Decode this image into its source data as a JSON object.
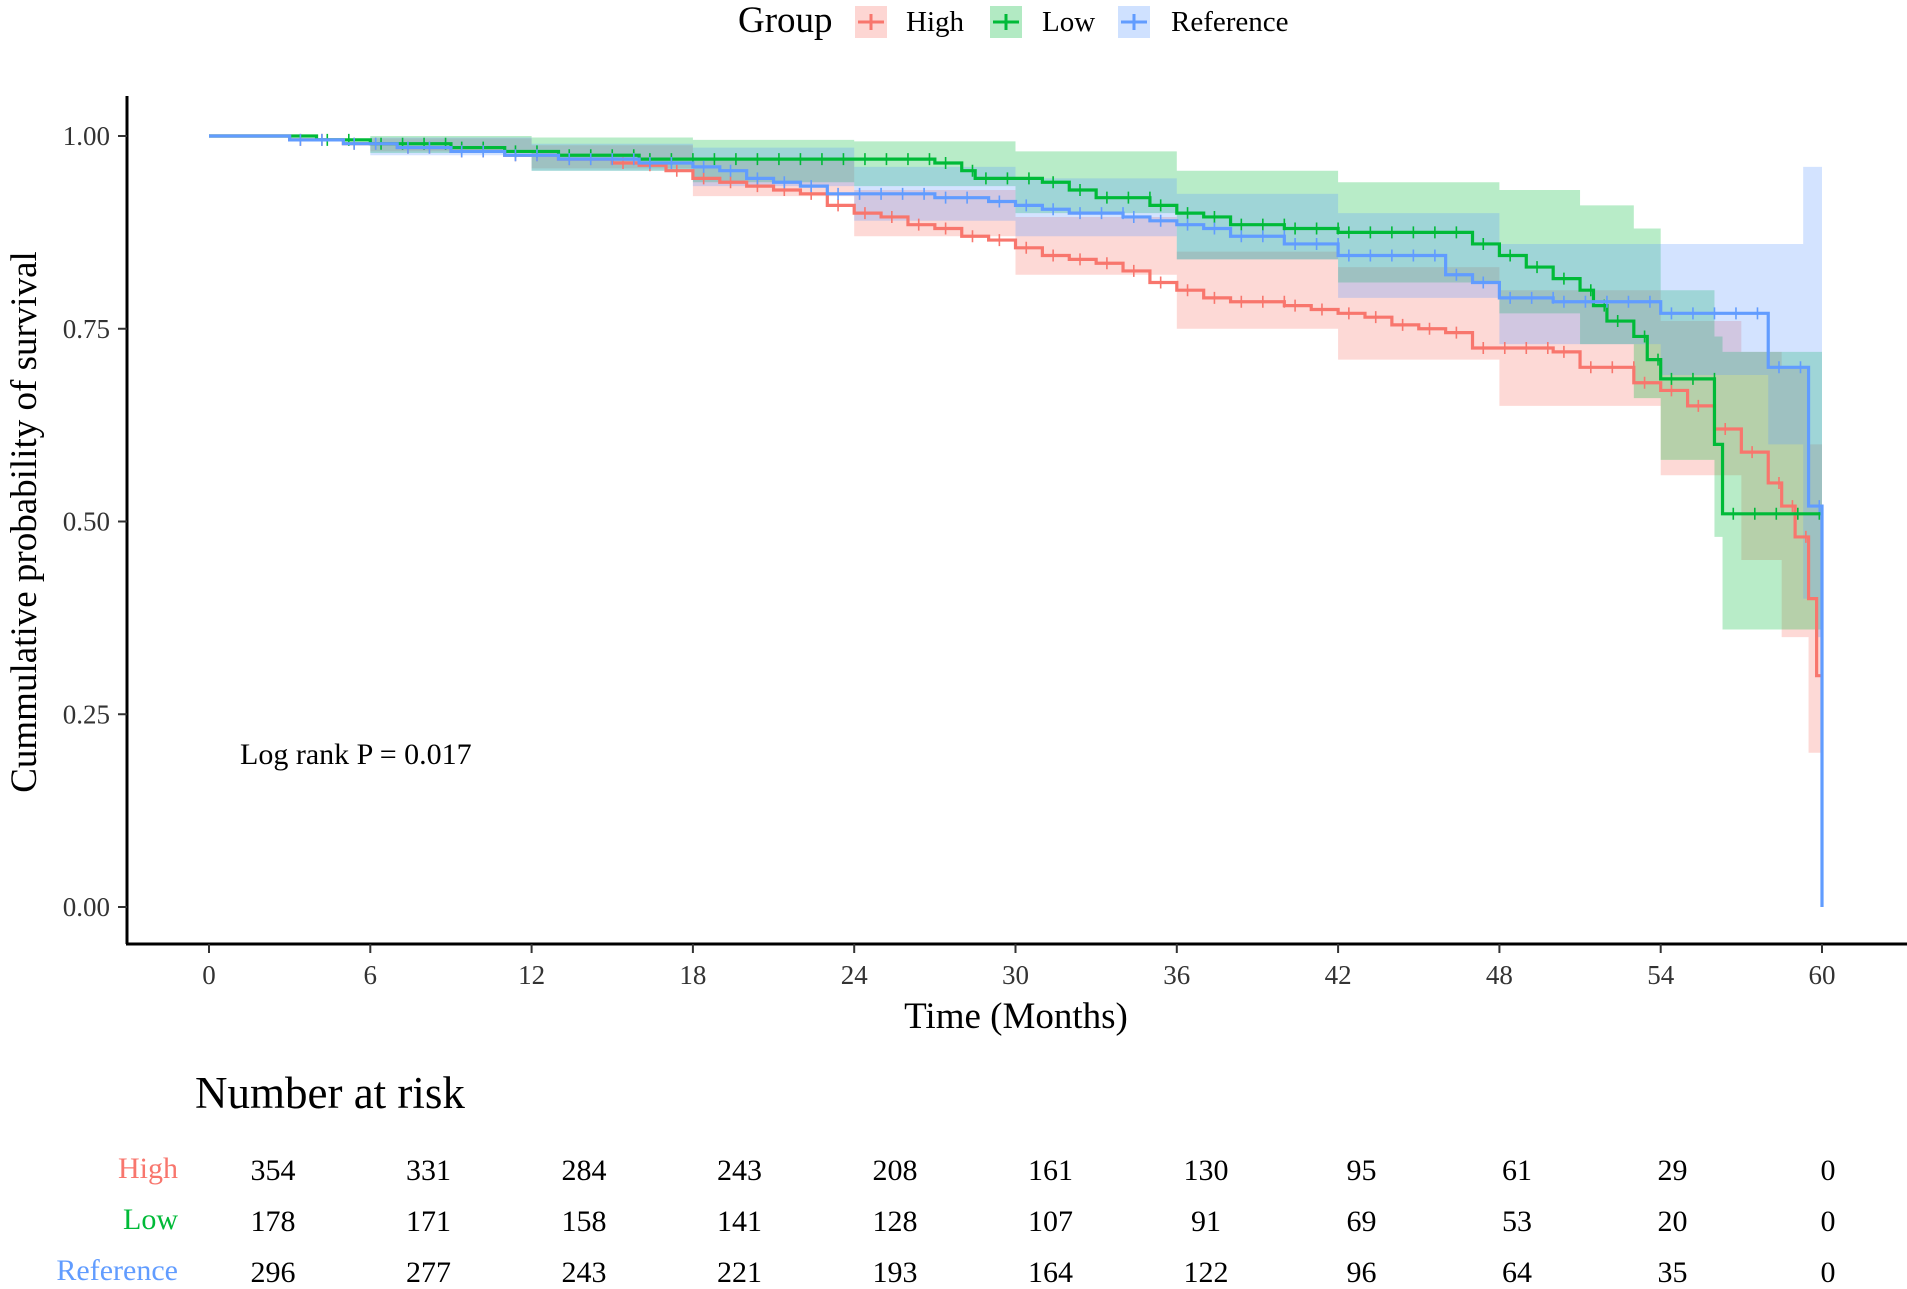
{
  "chart_data": {
    "type": "line",
    "subtype": "kaplan-meier",
    "title": "",
    "xlabel": "Time (Months)",
    "ylabel": "Cummulative probability of survival",
    "xlim": [
      0,
      60
    ],
    "ylim": [
      0,
      1
    ],
    "x_ticks": [
      "0",
      "6",
      "12",
      "18",
      "24",
      "30",
      "36",
      "42",
      "48",
      "54",
      "60"
    ],
    "y_ticks": [
      "0.00",
      "0.25",
      "0.50",
      "0.75",
      "1.00"
    ],
    "legend": {
      "title": "Group",
      "placement": "top-center",
      "entries": [
        "High",
        "Low",
        "Reference"
      ]
    },
    "annotation": "Log rank P = 0.017",
    "colors": {
      "High": "#F8766D",
      "Low": "#00BA38",
      "Reference": "#619CFF"
    },
    "series": [
      {
        "name": "High",
        "steps": [
          [
            0,
            1.0
          ],
          [
            3,
            0.995
          ],
          [
            5,
            0.99
          ],
          [
            7,
            0.985
          ],
          [
            9,
            0.98
          ],
          [
            11,
            0.975
          ],
          [
            13,
            0.97
          ],
          [
            15,
            0.965
          ],
          [
            16,
            0.962
          ],
          [
            17,
            0.955
          ],
          [
            18,
            0.945
          ],
          [
            19,
            0.94
          ],
          [
            20,
            0.935
          ],
          [
            21,
            0.93
          ],
          [
            22,
            0.925
          ],
          [
            23,
            0.91
          ],
          [
            24,
            0.9
          ],
          [
            25,
            0.895
          ],
          [
            26,
            0.885
          ],
          [
            27,
            0.88
          ],
          [
            28,
            0.87
          ],
          [
            29,
            0.865
          ],
          [
            30,
            0.855
          ],
          [
            31,
            0.845
          ],
          [
            32,
            0.84
          ],
          [
            33,
            0.835
          ],
          [
            34,
            0.825
          ],
          [
            35,
            0.81
          ],
          [
            36,
            0.8
          ],
          [
            37,
            0.79
          ],
          [
            38,
            0.785
          ],
          [
            40,
            0.78
          ],
          [
            41,
            0.775
          ],
          [
            42,
            0.77
          ],
          [
            43,
            0.765
          ],
          [
            44,
            0.755
          ],
          [
            45,
            0.75
          ],
          [
            46,
            0.745
          ],
          [
            47,
            0.725
          ],
          [
            50,
            0.72
          ],
          [
            51,
            0.7
          ],
          [
            53,
            0.68
          ],
          [
            54,
            0.67
          ],
          [
            55,
            0.65
          ],
          [
            56,
            0.62
          ],
          [
            57,
            0.59
          ],
          [
            58,
            0.55
          ],
          [
            58.5,
            0.52
          ],
          [
            59,
            0.48
          ],
          [
            59.5,
            0.4
          ],
          [
            59.8,
            0.3
          ],
          [
            60,
            0.3
          ]
        ],
        "band": [
          [
            0,
            1.0,
            1.0
          ],
          [
            6,
            0.98,
            0.997
          ],
          [
            12,
            0.958,
            0.988
          ],
          [
            18,
            0.922,
            0.968
          ],
          [
            24,
            0.87,
            0.93
          ],
          [
            30,
            0.82,
            0.895
          ],
          [
            36,
            0.75,
            0.85
          ],
          [
            42,
            0.71,
            0.83
          ],
          [
            48,
            0.65,
            0.8
          ],
          [
            54,
            0.56,
            0.76
          ],
          [
            57,
            0.45,
            0.72
          ],
          [
            58.5,
            0.35,
            0.7
          ],
          [
            59.5,
            0.2,
            0.6
          ],
          [
            60,
            0.14,
            0.55
          ]
        ]
      },
      {
        "name": "Low",
        "steps": [
          [
            0,
            1.0
          ],
          [
            4,
            0.995
          ],
          [
            6,
            0.99
          ],
          [
            9,
            0.985
          ],
          [
            11,
            0.98
          ],
          [
            13,
            0.975
          ],
          [
            16,
            0.97
          ],
          [
            27,
            0.965
          ],
          [
            28,
            0.955
          ],
          [
            28.5,
            0.945
          ],
          [
            31,
            0.94
          ],
          [
            32,
            0.93
          ],
          [
            33,
            0.92
          ],
          [
            35,
            0.91
          ],
          [
            36,
            0.9
          ],
          [
            37,
            0.895
          ],
          [
            38,
            0.885
          ],
          [
            40,
            0.88
          ],
          [
            42,
            0.875
          ],
          [
            47,
            0.86
          ],
          [
            48,
            0.845
          ],
          [
            49,
            0.83
          ],
          [
            50,
            0.815
          ],
          [
            51,
            0.8
          ],
          [
            51.5,
            0.78
          ],
          [
            52,
            0.76
          ],
          [
            53,
            0.74
          ],
          [
            53.5,
            0.71
          ],
          [
            54,
            0.685
          ],
          [
            56,
            0.6
          ],
          [
            56.3,
            0.51
          ],
          [
            60,
            0.51
          ]
        ],
        "band": [
          [
            0,
            1.0,
            1.0
          ],
          [
            6,
            0.978,
            1.0
          ],
          [
            12,
            0.955,
            0.998
          ],
          [
            18,
            0.94,
            0.995
          ],
          [
            24,
            0.935,
            0.993
          ],
          [
            30,
            0.9,
            0.98
          ],
          [
            36,
            0.84,
            0.955
          ],
          [
            42,
            0.81,
            0.94
          ],
          [
            48,
            0.77,
            0.93
          ],
          [
            51,
            0.73,
            0.91
          ],
          [
            53,
            0.66,
            0.88
          ],
          [
            54,
            0.58,
            0.8
          ],
          [
            56,
            0.48,
            0.74
          ],
          [
            56.3,
            0.36,
            0.72
          ],
          [
            60,
            0.36,
            0.72
          ]
        ]
      },
      {
        "name": "Reference",
        "steps": [
          [
            0,
            1.0
          ],
          [
            3,
            0.995
          ],
          [
            5,
            0.99
          ],
          [
            7,
            0.985
          ],
          [
            9,
            0.98
          ],
          [
            11,
            0.975
          ],
          [
            13,
            0.97
          ],
          [
            16,
            0.965
          ],
          [
            18,
            0.96
          ],
          [
            19,
            0.955
          ],
          [
            20,
            0.945
          ],
          [
            21,
            0.94
          ],
          [
            22,
            0.935
          ],
          [
            23,
            0.925
          ],
          [
            27,
            0.92
          ],
          [
            29,
            0.915
          ],
          [
            30,
            0.91
          ],
          [
            31,
            0.905
          ],
          [
            32,
            0.9
          ],
          [
            34,
            0.895
          ],
          [
            35,
            0.89
          ],
          [
            36,
            0.885
          ],
          [
            37,
            0.88
          ],
          [
            38,
            0.87
          ],
          [
            40,
            0.86
          ],
          [
            42,
            0.845
          ],
          [
            46,
            0.82
          ],
          [
            47,
            0.81
          ],
          [
            48,
            0.79
          ],
          [
            50,
            0.785
          ],
          [
            54,
            0.77
          ],
          [
            58,
            0.7
          ],
          [
            59.5,
            0.52
          ],
          [
            60,
            0.0
          ]
        ],
        "band": [
          [
            0,
            1.0,
            1.0
          ],
          [
            6,
            0.975,
            0.998
          ],
          [
            12,
            0.955,
            0.99
          ],
          [
            18,
            0.935,
            0.985
          ],
          [
            24,
            0.89,
            0.96
          ],
          [
            30,
            0.87,
            0.945
          ],
          [
            36,
            0.84,
            0.925
          ],
          [
            42,
            0.79,
            0.9
          ],
          [
            48,
            0.73,
            0.86
          ],
          [
            54,
            0.69,
            0.86
          ],
          [
            58,
            0.6,
            0.86
          ],
          [
            59.3,
            0.4,
            0.96
          ],
          [
            59.8,
            0.35,
            0.96
          ],
          [
            60,
            0.0,
            0.96
          ]
        ]
      }
    ]
  },
  "risk_table": {
    "title": "Number at risk",
    "rows": [
      {
        "group": "High",
        "values": [
          "354",
          "331",
          "284",
          "243",
          "208",
          "161",
          "130",
          "95",
          "61",
          "29",
          "0"
        ]
      },
      {
        "group": "Low",
        "values": [
          "178",
          "171",
          "158",
          "141",
          "128",
          "107",
          "91",
          "69",
          "53",
          "20",
          "0"
        ]
      },
      {
        "group": "Reference",
        "values": [
          "296",
          "277",
          "243",
          "221",
          "193",
          "164",
          "122",
          "96",
          "64",
          "35",
          "0"
        ]
      }
    ]
  }
}
